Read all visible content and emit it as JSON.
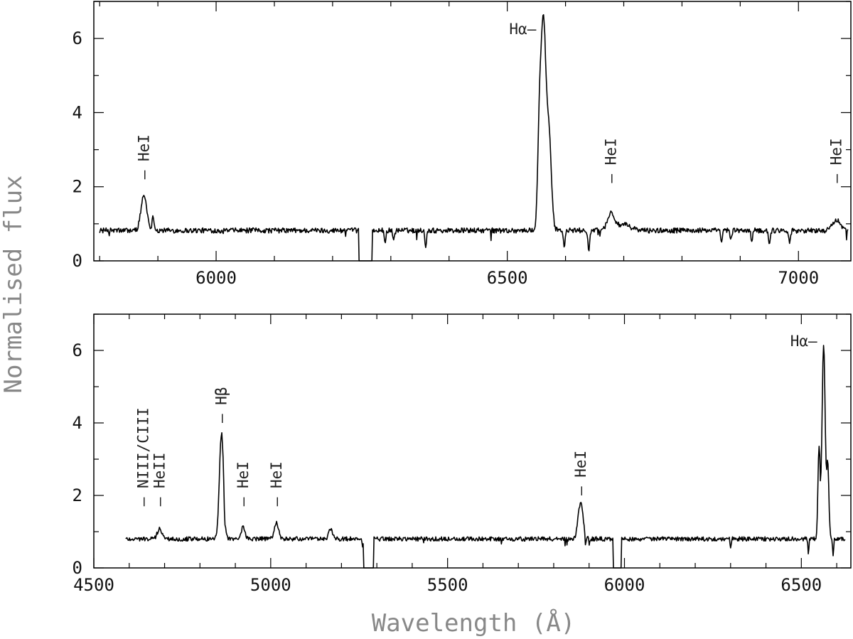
{
  "figure": {
    "ylabel": "Normalised flux",
    "xlabel": "Wavelength (Å)",
    "line_color": "#000000",
    "label_color": "#888888"
  },
  "chart_data": [
    {
      "type": "line",
      "title": "",
      "xlim": [
        5790,
        7090
      ],
      "ylim": [
        0,
        7
      ],
      "x_ticks": [
        6000,
        6500,
        7000
      ],
      "x_tick_labels": [
        "6000",
        "6500",
        "7000"
      ],
      "y_ticks": [
        0,
        2,
        4,
        6
      ],
      "y_tick_labels": [
        "0",
        "2",
        "4",
        "6"
      ],
      "x_tick_minor": 100,
      "y_tick_minor": 1,
      "continuum": 0.82,
      "noise": 0.07,
      "emission_lines": [
        {
          "x": 5876,
          "amp": 0.95,
          "sigma": 5
        },
        {
          "x": 5892,
          "amp": 0.35,
          "sigma": 2
        },
        {
          "x": 6555,
          "amp": 2.0,
          "sigma": 3
        },
        {
          "x": 6562,
          "amp": 5.6,
          "sigma": 4.5
        },
        {
          "x": 6572,
          "amp": 2.3,
          "sigma": 4
        },
        {
          "x": 6678,
          "amp": 0.45,
          "sigma": 6
        },
        {
          "x": 6700,
          "amp": 0.15,
          "sigma": 12
        },
        {
          "x": 7065,
          "amp": 0.3,
          "sigma": 6
        }
      ],
      "absorption_dips": [
        {
          "x": 6290,
          "depth": 0.3
        },
        {
          "x": 6305,
          "depth": 0.25
        },
        {
          "x": 6360,
          "depth": 0.4
        },
        {
          "x": 6598,
          "depth": 0.45
        },
        {
          "x": 6640,
          "depth": 0.55
        },
        {
          "x": 6868,
          "depth": 0.3
        },
        {
          "x": 6884,
          "depth": 0.25
        },
        {
          "x": 6920,
          "depth": 0.3
        },
        {
          "x": 6950,
          "depth": 0.35
        },
        {
          "x": 6985,
          "depth": 0.3
        }
      ],
      "gaps": [
        [
          6245,
          6268
        ]
      ],
      "line_labels": [
        {
          "text": "HeI",
          "x": 5876,
          "y": 2.2,
          "orientation": "vertical"
        },
        {
          "text": "Hα",
          "x": 6557,
          "y": 6.0,
          "orientation": "horizontal"
        },
        {
          "text": "HeI",
          "x": 6678,
          "y": 2.1,
          "orientation": "vertical"
        },
        {
          "text": "HeI",
          "x": 7065,
          "y": 2.1,
          "orientation": "vertical"
        }
      ]
    },
    {
      "type": "line",
      "title": "",
      "xlim": [
        4500,
        6640
      ],
      "ylim": [
        0,
        7
      ],
      "x_ticks": [
        4500,
        5000,
        5500,
        6000,
        6500
      ],
      "x_tick_labels": [
        "4500",
        "5000",
        "5500",
        "6000",
        "6500"
      ],
      "y_ticks": [
        0,
        2,
        4,
        6
      ],
      "y_tick_labels": [
        "0",
        "2",
        "4",
        "6"
      ],
      "x_tick_minor": 100,
      "y_tick_minor": 1,
      "continuum": 0.8,
      "noise": 0.06,
      "emission_lines": [
        {
          "x": 4686,
          "amp": 0.3,
          "sigma": 6
        },
        {
          "x": 4861,
          "amp": 2.9,
          "sigma": 6
        },
        {
          "x": 4922,
          "amp": 0.35,
          "sigma": 5
        },
        {
          "x": 5016,
          "amp": 0.45,
          "sigma": 6
        },
        {
          "x": 5169,
          "amp": 0.3,
          "sigma": 5
        },
        {
          "x": 5876,
          "amp": 1.0,
          "sigma": 7
        },
        {
          "x": 6550,
          "amp": 2.5,
          "sigma": 3
        },
        {
          "x": 6563,
          "amp": 5.4,
          "sigma": 4.5
        },
        {
          "x": 6575,
          "amp": 2.0,
          "sigma": 3
        }
      ],
      "absorption_dips": [
        {
          "x": 4870,
          "depth": 0.45
        },
        {
          "x": 5260,
          "depth": 0.2
        },
        {
          "x": 5890,
          "depth": 0.3
        },
        {
          "x": 6300,
          "depth": 0.2
        },
        {
          "x": 6520,
          "depth": 0.4
        },
        {
          "x": 6590,
          "depth": 0.45
        }
      ],
      "gaps": [
        [
          5263,
          5292
        ],
        [
          5968,
          5992
        ]
      ],
      "line_labels": [
        {
          "text": "NIII/CIII",
          "x": 4640,
          "y": 1.7,
          "orientation": "vertical"
        },
        {
          "text": "HeII",
          "x": 4686,
          "y": 1.7,
          "orientation": "vertical"
        },
        {
          "text": "Hβ",
          "x": 4861,
          "y": 4.0,
          "orientation": "vertical"
        },
        {
          "text": "HeI",
          "x": 4922,
          "y": 1.7,
          "orientation": "vertical"
        },
        {
          "text": "HeI",
          "x": 5016,
          "y": 1.7,
          "orientation": "vertical"
        },
        {
          "text": "HeI",
          "x": 5876,
          "y": 2.0,
          "orientation": "vertical"
        },
        {
          "text": "Hα",
          "x": 6557,
          "y": 6.0,
          "orientation": "horizontal"
        }
      ]
    }
  ]
}
